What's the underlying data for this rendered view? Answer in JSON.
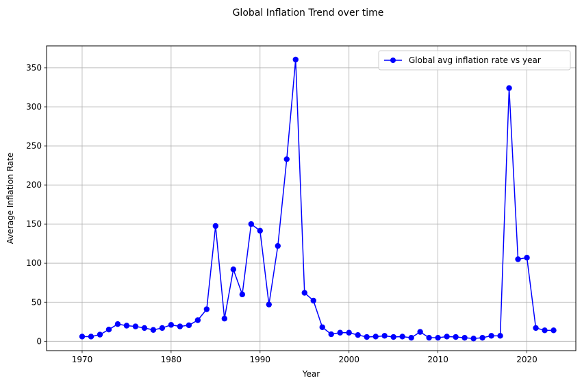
{
  "chart_data": {
    "type": "line",
    "title": "Global Inflation Trend over time",
    "xlabel": "Year",
    "ylabel": "Average Inflation Rate",
    "xlim": [
      1966,
      2025.5
    ],
    "ylim": [
      -12,
      378
    ],
    "xticks": [
      1970,
      1980,
      1990,
      2000,
      2010,
      2020
    ],
    "yticks": [
      0,
      50,
      100,
      150,
      200,
      250,
      300,
      350
    ],
    "grid": true,
    "legend_position": "upper-right",
    "series": [
      {
        "name": "Global avg inflation rate vs year",
        "color": "#0000ff",
        "marker": "circle",
        "x": [
          1970,
          1971,
          1972,
          1973,
          1974,
          1975,
          1976,
          1977,
          1978,
          1979,
          1980,
          1981,
          1982,
          1983,
          1984,
          1985,
          1986,
          1987,
          1988,
          1989,
          1990,
          1991,
          1992,
          1993,
          1994,
          1995,
          1996,
          1997,
          1998,
          1999,
          2000,
          2001,
          2002,
          2003,
          2004,
          2005,
          2006,
          2007,
          2008,
          2009,
          2010,
          2011,
          2012,
          2013,
          2014,
          2015,
          2016,
          2017,
          2018,
          2019,
          2020,
          2021,
          2022,
          2023
        ],
        "y": [
          6,
          6,
          8.5,
          15,
          22,
          20,
          19,
          17,
          14.5,
          17,
          21,
          19,
          20.5,
          27,
          41,
          147.5,
          29,
          92,
          60,
          150,
          141.5,
          47,
          122,
          233,
          360.5,
          62,
          52,
          18,
          9,
          11,
          11,
          8,
          5.5,
          6,
          7,
          5.5,
          6,
          4.5,
          12,
          4.5,
          4.5,
          6,
          5.5,
          4.5,
          3.5,
          4.5,
          7,
          7,
          324,
          105,
          107,
          17,
          14,
          14
        ]
      }
    ]
  }
}
